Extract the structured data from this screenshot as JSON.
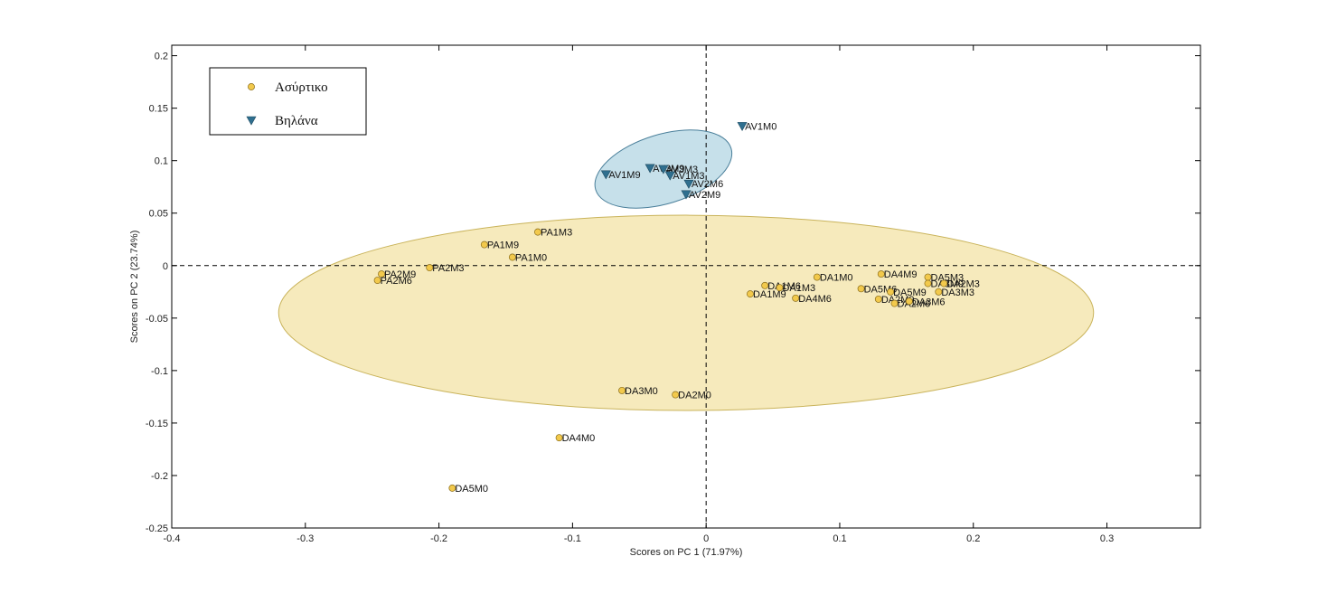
{
  "chart_data": {
    "type": "scatter",
    "title": "",
    "xlabel": "Scores on PC 1 (71.97%)",
    "ylabel": "Scores on PC 2 (23.74%)",
    "xlim": [
      -0.4,
      0.37
    ],
    "ylim": [
      -0.25,
      0.21
    ],
    "x_ticks": [
      -0.4,
      -0.3,
      -0.2,
      -0.1,
      0,
      0.1,
      0.2,
      0.3
    ],
    "x_tick_labels": [
      "-0.4",
      "-0.3",
      "-0.2",
      "-0.1",
      "0",
      "0.1",
      "0.2",
      "0.3"
    ],
    "y_ticks": [
      -0.25,
      -0.2,
      -0.15,
      -0.1,
      -0.05,
      0,
      0.05,
      0.1,
      0.15,
      0.2
    ],
    "y_tick_labels": [
      "-0.25",
      "-0.2",
      "-0.15",
      "-0.1",
      "-0.05",
      "0",
      "0.05",
      "0.1",
      "0.15",
      "0.2"
    ],
    "grid": false,
    "zero_lines": true,
    "legend_position": "top-left",
    "series": [
      {
        "name": "Ασύρτικο",
        "marker": "circle",
        "color": "#f2c94c",
        "ellipse": {
          "cx": -0.015,
          "cy": -0.045,
          "rx": 0.305,
          "ry": 0.093,
          "fill": "#f5e6b0",
          "stroke": "#c9b35a"
        },
        "points": [
          {
            "label": "PA2M9",
            "x": -0.243,
            "y": -0.008
          },
          {
            "label": "PA2M6",
            "x": -0.246,
            "y": -0.014
          },
          {
            "label": "PA2M3",
            "x": -0.207,
            "y": -0.002
          },
          {
            "label": "PA1M9",
            "x": -0.166,
            "y": 0.02
          },
          {
            "label": "PA1M0",
            "x": -0.145,
            "y": 0.008
          },
          {
            "label": "PA1M3",
            "x": -0.126,
            "y": 0.032
          },
          {
            "label": "DA1M0",
            "x": 0.083,
            "y": -0.011
          },
          {
            "label": "DA4M9",
            "x": 0.131,
            "y": -0.008
          },
          {
            "label": "DA1M9",
            "x": 0.033,
            "y": -0.027
          },
          {
            "label": "DA1M6",
            "x": 0.044,
            "y": -0.019
          },
          {
            "label": "DA1M3",
            "x": 0.055,
            "y": -0.021
          },
          {
            "label": "DA4M6",
            "x": 0.067,
            "y": -0.031
          },
          {
            "label": "DA5M6",
            "x": 0.116,
            "y": -0.022
          },
          {
            "label": "DA2M9",
            "x": 0.129,
            "y": -0.032
          },
          {
            "label": "DA5M9",
            "x": 0.138,
            "y": -0.025
          },
          {
            "label": "DA2M6",
            "x": 0.141,
            "y": -0.036
          },
          {
            "label": "DA3M6",
            "x": 0.152,
            "y": -0.034
          },
          {
            "label": "DA5M3",
            "x": 0.166,
            "y": -0.011
          },
          {
            "label": "DA3M9",
            "x": 0.166,
            "y": -0.017
          },
          {
            "label": "DA2M3",
            "x": 0.178,
            "y": -0.017
          },
          {
            "label": "DA3M3",
            "x": 0.174,
            "y": -0.025
          },
          {
            "label": "DA3M0",
            "x": -0.063,
            "y": -0.119
          },
          {
            "label": "DA2M0",
            "x": -0.023,
            "y": -0.123
          },
          {
            "label": "DA4M0",
            "x": -0.11,
            "y": -0.164
          },
          {
            "label": "DA5M0",
            "x": -0.19,
            "y": -0.212
          }
        ]
      },
      {
        "name": "Βηλάνα",
        "marker": "triangle-down",
        "color": "#2f6f8f",
        "ellipse": {
          "cx": -0.032,
          "cy": 0.092,
          "rx": 0.053,
          "ry": 0.033,
          "angle": -17,
          "fill": "#bcdbe6",
          "stroke": "#4a7f9a"
        },
        "points": [
          {
            "label": "AV1M0",
            "x": 0.027,
            "y": 0.133
          },
          {
            "label": "AV1M9",
            "x": -0.075,
            "y": 0.087
          },
          {
            "label": "AV3M9",
            "x": -0.042,
            "y": 0.093
          },
          {
            "label": "AV3M3",
            "x": -0.032,
            "y": 0.092
          },
          {
            "label": "AV1M3",
            "x": -0.027,
            "y": 0.086
          },
          {
            "label": "AV2M6",
            "x": -0.013,
            "y": 0.078
          },
          {
            "label": "AV2M9",
            "x": -0.015,
            "y": 0.068
          }
        ]
      }
    ]
  }
}
